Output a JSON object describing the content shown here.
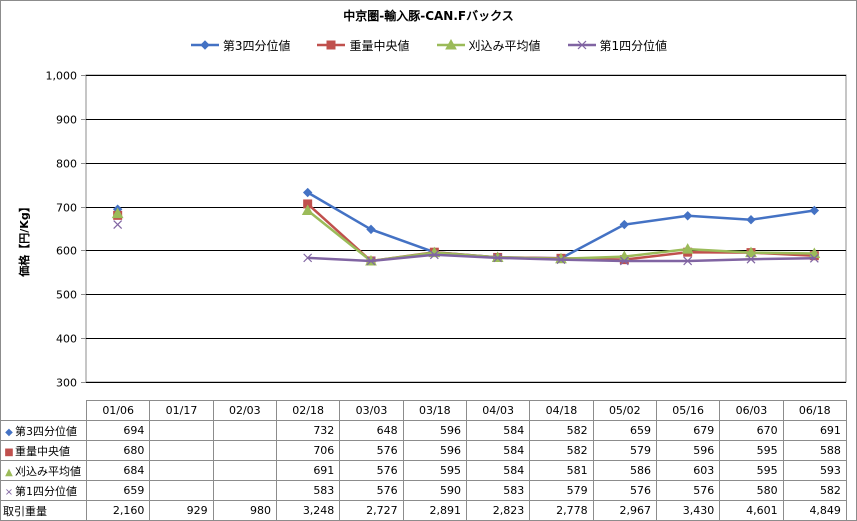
{
  "chart_data": {
    "type": "line",
    "title": "中京圏-輸入豚-CAN.Fバックス",
    "ylabel": "価格【円/Kg】",
    "ylim": [
      300,
      1000
    ],
    "yticks": [
      "1,000",
      "900",
      "800",
      "700",
      "600",
      "500",
      "400",
      "300"
    ],
    "categories": [
      "01/06",
      "01/17",
      "02/03",
      "02/18",
      "03/03",
      "03/18",
      "04/03",
      "04/18",
      "05/02",
      "05/16",
      "06/03",
      "06/18"
    ],
    "series": [
      {
        "name": "第3四分位値",
        "color": "#4472c4",
        "marker": "diamond",
        "values": [
          694,
          null,
          null,
          732,
          648,
          596,
          584,
          582,
          659,
          679,
          670,
          691
        ],
        "labels": [
          "694",
          "",
          "",
          "732",
          "648",
          "596",
          "584",
          "582",
          "659",
          "679",
          "670",
          "691"
        ]
      },
      {
        "name": "重量中央値",
        "color": "#c0504d",
        "marker": "square",
        "values": [
          680,
          null,
          null,
          706,
          576,
          596,
          584,
          582,
          579,
          596,
          595,
          588
        ],
        "labels": [
          "680",
          "",
          "",
          "706",
          "576",
          "596",
          "584",
          "582",
          "579",
          "596",
          "595",
          "588"
        ]
      },
      {
        "name": "刈込み平均値",
        "color": "#9bbb59",
        "marker": "triangle",
        "values": [
          684,
          null,
          null,
          691,
          576,
          595,
          584,
          581,
          586,
          603,
          595,
          593
        ],
        "labels": [
          "684",
          "",
          "",
          "691",
          "576",
          "595",
          "584",
          "581",
          "586",
          "603",
          "595",
          "593"
        ]
      },
      {
        "name": "第1四分位値",
        "color": "#8064a2",
        "marker": "x",
        "values": [
          659,
          null,
          null,
          583,
          576,
          590,
          583,
          579,
          576,
          576,
          580,
          582
        ],
        "labels": [
          "659",
          "",
          "",
          "583",
          "576",
          "590",
          "583",
          "579",
          "576",
          "576",
          "580",
          "582"
        ]
      }
    ],
    "extra_row": {
      "name": "取引重量",
      "labels": [
        "2,160",
        "929",
        "980",
        "3,248",
        "2,727",
        "2,891",
        "2,823",
        "2,778",
        "2,967",
        "3,430",
        "4,601",
        "4,849"
      ]
    },
    "legend_position": "top",
    "grid": true
  }
}
